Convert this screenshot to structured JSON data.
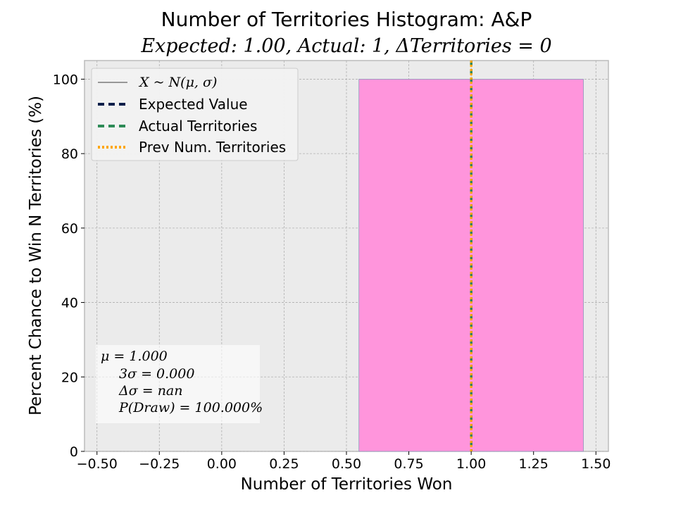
{
  "chart_data": {
    "type": "bar",
    "title": "Number of Territories Histogram: A&P",
    "subtitle": "Expected: 1.00, Actual: 1, ΔTerritories = 0",
    "xlabel": "Number of Territories Won",
    "ylabel": "Percent Chance to Win N Territories (%)",
    "xlim": [
      -0.55,
      1.55
    ],
    "ylim": [
      0,
      105
    ],
    "xticks": [
      -0.5,
      -0.25,
      0.0,
      0.25,
      0.5,
      0.75,
      1.0,
      1.25,
      1.5
    ],
    "xtick_labels": [
      "−0.50",
      "−0.25",
      "0.00",
      "0.25",
      "0.50",
      "0.75",
      "1.00",
      "1.25",
      "1.50"
    ],
    "yticks": [
      0,
      20,
      40,
      60,
      80,
      100
    ],
    "ytick_labels": [
      "0",
      "20",
      "40",
      "60",
      "80",
      "100"
    ],
    "grid": true,
    "bars": [
      {
        "x": 1,
        "x_start": 0.55,
        "x_end": 1.45,
        "value": 100,
        "color": "#ff95dc"
      }
    ],
    "vlines": [
      {
        "name": "Expected Value",
        "x": 1.0,
        "color": "#0c1f4a",
        "style": "dashed"
      },
      {
        "name": "Actual Territories",
        "x": 1.0,
        "color": "#2e8b57",
        "style": "dashed"
      },
      {
        "name": "Prev Num. Territories",
        "x": 1.0,
        "color": "#ffa500",
        "style": "dotted"
      }
    ],
    "legend": {
      "position": "top-left",
      "entries": [
        {
          "label": "X ~ N(μ, σ)",
          "color": "#000000",
          "style": "solid-thin"
        },
        {
          "label": "Expected Value",
          "color": "#0c1f4a",
          "style": "dashed"
        },
        {
          "label": "Actual Territories",
          "color": "#2e8b57",
          "style": "dashed"
        },
        {
          "label": "Prev Num. Territories",
          "color": "#ffa500",
          "style": "dotted"
        }
      ]
    },
    "stats_box": {
      "position": "bottom-left",
      "lines": [
        "μ = 1.000",
        "3σ = 0.000",
        "Δσ = nan",
        "P(Draw) = 100.000%"
      ]
    },
    "colors": {
      "plot_background": "#ebebeb",
      "grid": "#b0b0b0",
      "bar": "#ff95dc"
    }
  }
}
